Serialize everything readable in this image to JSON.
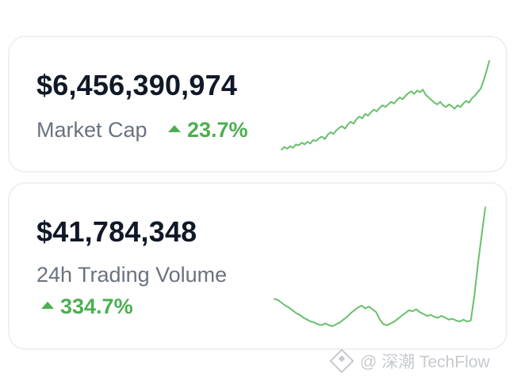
{
  "market_cap": {
    "value": "$6,456,390,974",
    "label": "Market Cap",
    "change": "23.7%",
    "trend_icon": "triangle-up-icon",
    "trend_color": "#4caf50",
    "sparkline_relative": [
      6,
      9,
      7,
      10,
      8,
      12,
      11,
      14,
      12,
      15,
      13,
      17,
      16,
      19,
      21,
      18,
      23,
      26,
      24,
      28,
      31,
      33,
      30,
      35,
      38,
      36,
      41,
      44,
      42,
      47,
      45,
      49,
      52,
      50,
      54,
      57,
      55,
      58,
      61,
      59,
      63,
      66,
      64,
      68,
      71,
      73,
      70,
      74,
      72,
      75,
      69,
      66,
      63,
      60,
      58,
      61,
      57,
      55,
      58,
      56,
      53,
      57,
      55,
      59,
      62,
      60,
      65,
      68,
      72,
      76,
      85,
      96,
      108
    ]
  },
  "trading_volume": {
    "value": "$41,784,348",
    "label": "24h Trading Volume",
    "change": "334.7%",
    "trend_icon": "triangle-up-icon",
    "trend_color": "#4caf50",
    "sparkline_relative": [
      42,
      41,
      38,
      35,
      33,
      30,
      27,
      25,
      22,
      20,
      18,
      17,
      15,
      14,
      16,
      14,
      13,
      15,
      17,
      20,
      23,
      27,
      30,
      33,
      35,
      32,
      34,
      31,
      28,
      20,
      15,
      14,
      16,
      18,
      21,
      24,
      27,
      30,
      29,
      31,
      28,
      26,
      24,
      25,
      23,
      22,
      24,
      22,
      20,
      21,
      19,
      18,
      20,
      18,
      19,
      45,
      80,
      110,
      140
    ]
  },
  "watermark": {
    "text": "@ 深潮 TechFlow"
  }
}
